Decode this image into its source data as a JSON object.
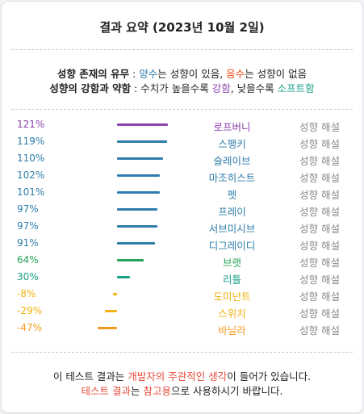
{
  "title": "결과 요약 (2023년 10월 2일)",
  "legend": {
    "line1": {
      "label": "성향 존재의 유무",
      "sep": " : ",
      "pos": "양수",
      "t1": "는 성향이 있음, ",
      "neg": "음수",
      "t2": "는 성향이 없음"
    },
    "line2": {
      "label": "성향의 강함과 약함",
      "sep": " : 수치가 높을수록 ",
      "strong": "강함",
      "t1": ", 낮을수록 ",
      "soft": "소프트함"
    }
  },
  "link_label": "성향 해설",
  "results": [
    {
      "pct": "121%",
      "value": 121,
      "name": "로프버니",
      "color": "#8e44ad"
    },
    {
      "pct": "119%",
      "value": 119,
      "name": "스팽키",
      "color": "#2e7dab"
    },
    {
      "pct": "110%",
      "value": 110,
      "name": "슬레이브",
      "color": "#2e7dab"
    },
    {
      "pct": "102%",
      "value": 102,
      "name": "마조히스트",
      "color": "#2e7dab"
    },
    {
      "pct": "101%",
      "value": 101,
      "name": "펫",
      "color": "#2e7dab"
    },
    {
      "pct": "97%",
      "value": 97,
      "name": "프레이",
      "color": "#2e7dab"
    },
    {
      "pct": "97%",
      "value": 97,
      "name": "서브미시브",
      "color": "#2e7dab"
    },
    {
      "pct": "91%",
      "value": 91,
      "name": "디그레이디",
      "color": "#2e7dab"
    },
    {
      "pct": "64%",
      "value": 64,
      "name": "브랫",
      "color": "#27a35a"
    },
    {
      "pct": "30%",
      "value": 30,
      "name": "리틀",
      "color": "#16a085"
    },
    {
      "pct": "-8%",
      "value": -8,
      "name": "도미넌트",
      "color": "#f1b20f"
    },
    {
      "pct": "-29%",
      "value": -29,
      "name": "스위치",
      "color": "#f1b20f"
    },
    {
      "pct": "-47%",
      "value": -47,
      "name": "바닐라",
      "color": "#f39a1e"
    }
  ],
  "footer": {
    "line1": {
      "a": "이 테스트 결과는 ",
      "b": "개발자의 주관적인 생각",
      "c": "이 들어가 있습니다."
    },
    "line2": {
      "a": "테스트 결과",
      "b": "는 ",
      "c": "참고용",
      "d": "으로 사용하시기 바랍니다."
    }
  },
  "colors": {
    "positive": "#2e7dab",
    "negative": "#e8501a",
    "strong": "#8e44ad",
    "soft": "#16a085",
    "footer_red": "#e74c3c"
  }
}
